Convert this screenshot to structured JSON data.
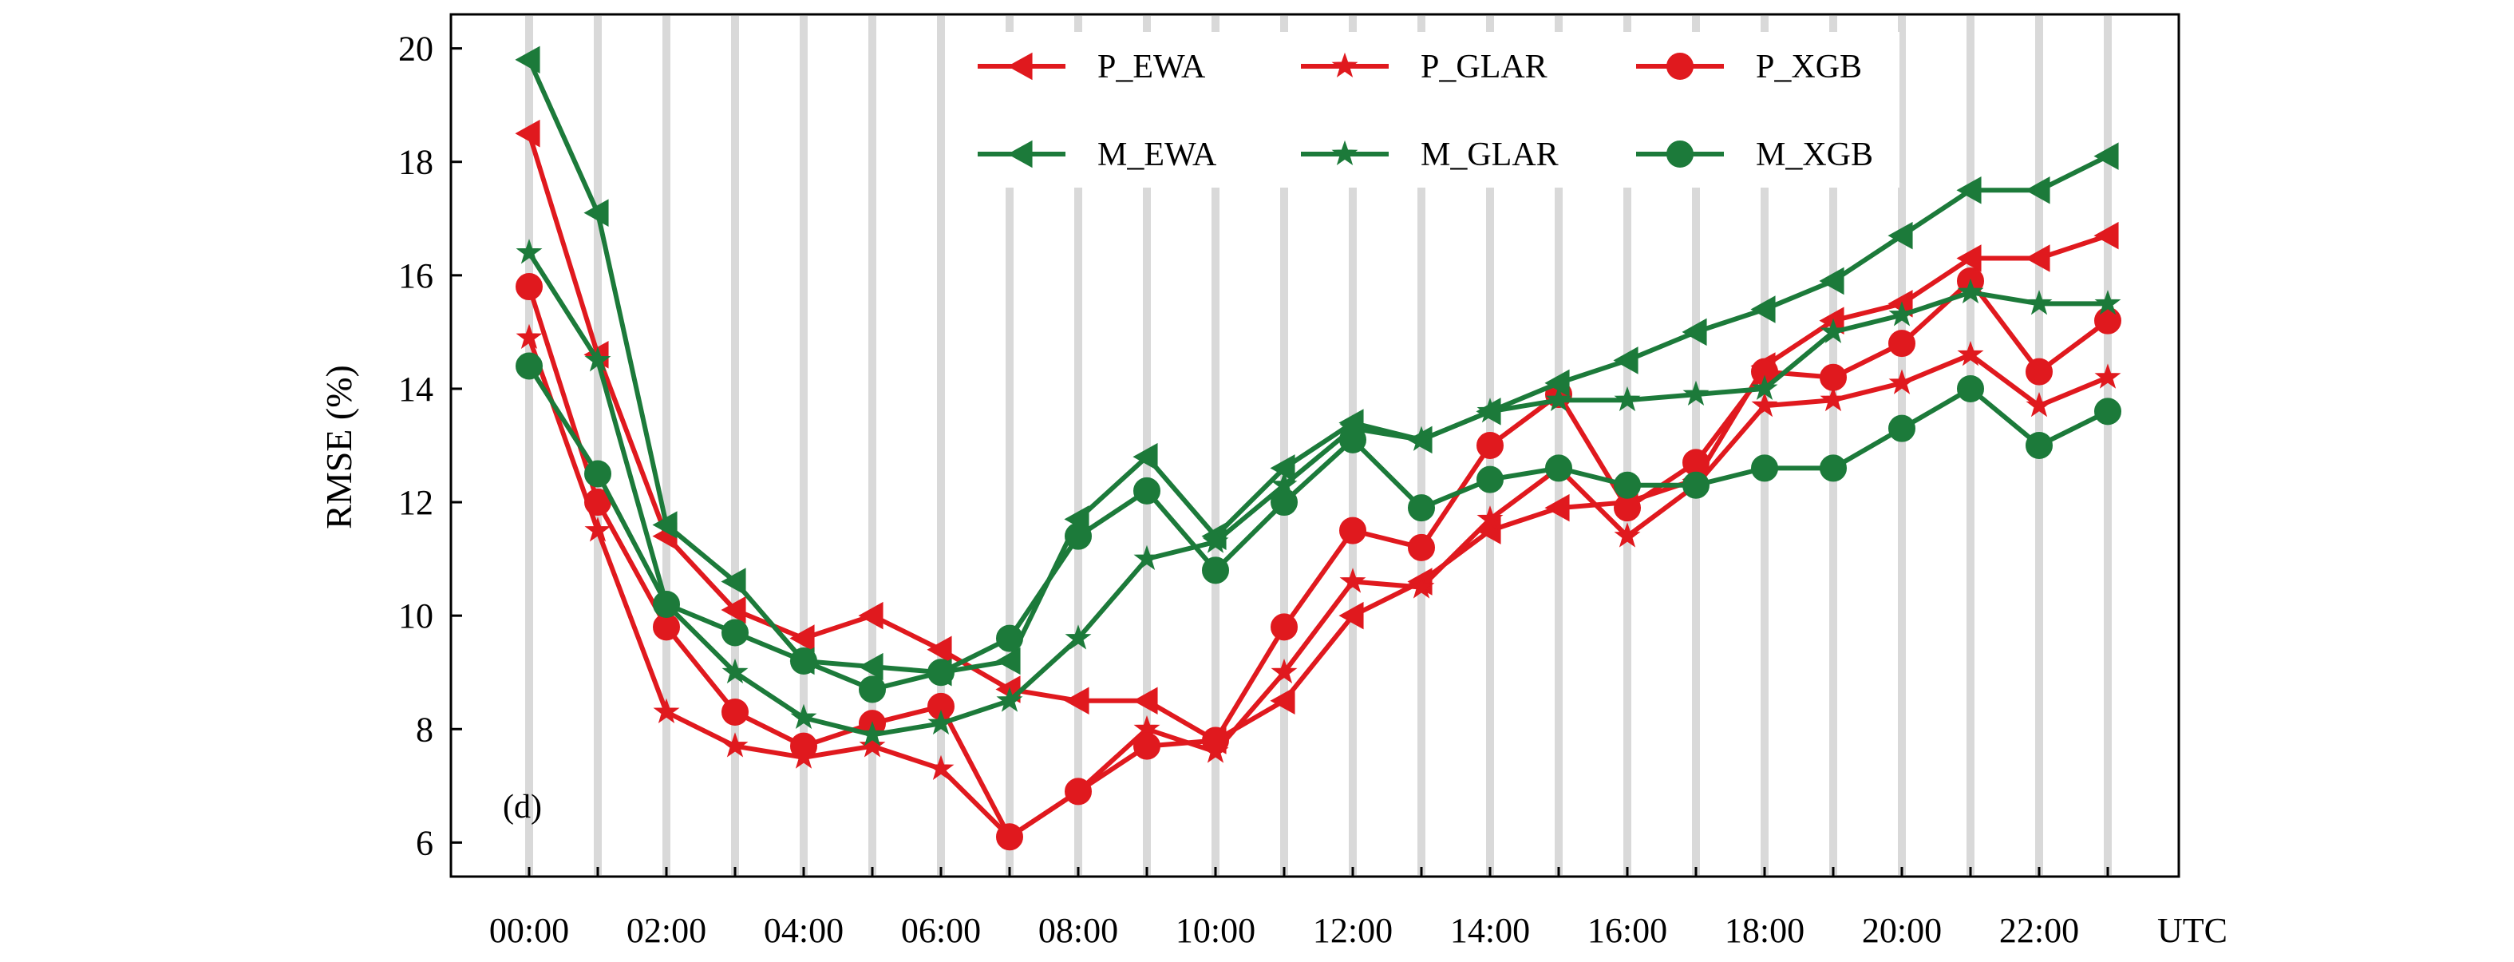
{
  "chart_data": {
    "type": "line",
    "title": "",
    "panel_label": "(d)",
    "xlabel": "",
    "x_unit_label": "UTC",
    "ylabel": "RMSE (%)",
    "ylim": [
      5.4,
      20.6
    ],
    "yticks": [
      6,
      8,
      10,
      12,
      14,
      16,
      18,
      20
    ],
    "grid": "vertical-light",
    "legend_placement": "top-right",
    "x": [
      0,
      1,
      2,
      3,
      4,
      5,
      6,
      7,
      8,
      9,
      10,
      11,
      12,
      13,
      14,
      15,
      16,
      17,
      18,
      19,
      20,
      21,
      22,
      23
    ],
    "xtick_positions": [
      0,
      2,
      4,
      6,
      8,
      10,
      12,
      14,
      16,
      18,
      20,
      22
    ],
    "xtick_labels": [
      "00:00",
      "02:00",
      "04:00",
      "06:00",
      "08:00",
      "10:00",
      "12:00",
      "14:00",
      "16:00",
      "18:00",
      "20:00",
      "22:00"
    ],
    "series": [
      {
        "name": "P_EWA",
        "color": "#e0191e",
        "marker": "triangle-left",
        "values": [
          18.5,
          14.6,
          11.4,
          10.1,
          9.6,
          10.0,
          9.4,
          8.7,
          8.5,
          8.5,
          7.8,
          8.5,
          10.0,
          10.6,
          11.5,
          11.9,
          12.0,
          12.4,
          14.4,
          15.2,
          15.5,
          16.3,
          16.3,
          16.7
        ]
      },
      {
        "name": "P_GLAR",
        "color": "#e0191e",
        "marker": "star",
        "values": [
          14.9,
          11.5,
          8.3,
          7.7,
          7.5,
          7.7,
          7.3,
          6.1,
          6.9,
          8.0,
          7.6,
          9.0,
          10.6,
          10.5,
          11.7,
          12.6,
          11.4,
          12.3,
          13.7,
          13.8,
          14.1,
          14.6,
          13.7,
          14.2
        ]
      },
      {
        "name": "P_XGB",
        "color": "#e0191e",
        "marker": "circle",
        "values": [
          15.8,
          12.0,
          9.8,
          8.3,
          7.7,
          8.1,
          8.4,
          6.1,
          6.9,
          7.7,
          7.8,
          9.8,
          11.5,
          11.2,
          13.0,
          13.9,
          11.9,
          12.7,
          14.3,
          14.2,
          14.8,
          15.9,
          14.3,
          15.2
        ]
      },
      {
        "name": "M_EWA",
        "color": "#1c7a3a",
        "marker": "triangle-left",
        "values": [
          19.8,
          17.1,
          11.6,
          10.6,
          9.2,
          9.1,
          9.0,
          9.2,
          11.7,
          12.8,
          11.4,
          12.6,
          13.4,
          13.1,
          13.6,
          14.1,
          14.5,
          15.0,
          15.4,
          15.9,
          16.7,
          17.5,
          17.5,
          18.1
        ]
      },
      {
        "name": "M_GLAR",
        "color": "#1c7a3a",
        "marker": "star",
        "values": [
          16.4,
          14.5,
          10.2,
          9.0,
          8.2,
          7.9,
          8.1,
          8.5,
          9.6,
          11.0,
          11.3,
          12.3,
          13.3,
          13.1,
          13.6,
          13.8,
          13.8,
          13.9,
          14.0,
          15.0,
          15.3,
          15.7,
          15.5,
          15.5
        ]
      },
      {
        "name": "M_XGB",
        "color": "#1c7a3a",
        "marker": "circle",
        "values": [
          14.4,
          12.5,
          10.2,
          9.7,
          9.2,
          8.7,
          9.0,
          9.6,
          11.4,
          12.2,
          10.8,
          12.0,
          13.1,
          11.9,
          12.4,
          12.6,
          12.3,
          12.3,
          12.6,
          12.6,
          13.3,
          14.0,
          13.0,
          13.6
        ]
      }
    ]
  }
}
